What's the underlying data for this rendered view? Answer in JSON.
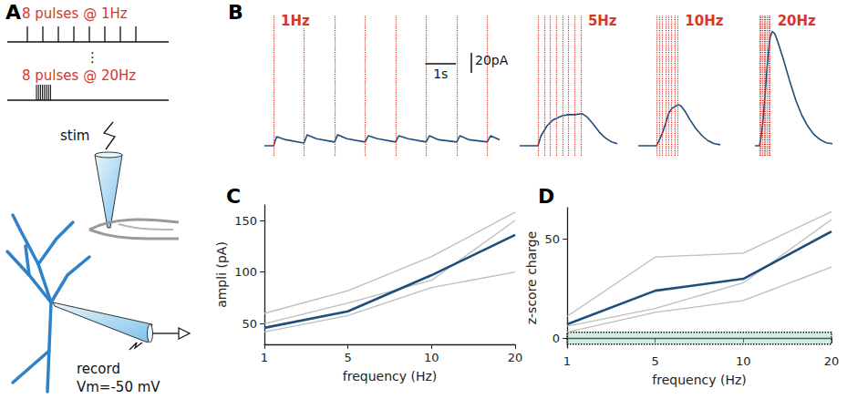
{
  "panel_labels": [
    "A",
    "B",
    "C",
    "D"
  ],
  "diagram": {
    "protocols": [
      {
        "label": "8 pulses @ 1Hz",
        "pulses": 8
      },
      {
        "label": "8 pulses @ 20Hz",
        "pulses": 8
      }
    ],
    "ellipsis": "⋮",
    "stim": "stim",
    "record": "record",
    "holding": "Vm=-50 mV"
  },
  "scale_bar": {
    "time": 1,
    "time_label": "1s",
    "current": 20,
    "current_label": "20pA"
  },
  "chart_data": [
    {
      "type": "line",
      "title": "1Hz",
      "color": "#1f4e7a",
      "tick_labels": false,
      "grid": false,
      "xlim": [
        -0.3,
        7.4
      ],
      "ylim": [
        -10,
        130
      ],
      "pulses": [
        0,
        1,
        2,
        3,
        4,
        5,
        6,
        7
      ],
      "x": [
        -0.3,
        0,
        0.1,
        0.4,
        0.95,
        1,
        1.1,
        1.4,
        1.95,
        2,
        2.1,
        2.4,
        2.95,
        3,
        3.1,
        3.4,
        3.95,
        4,
        4.1,
        4.4,
        4.95,
        5,
        5.1,
        5.4,
        5.95,
        6,
        6.1,
        6.4,
        6.95,
        7,
        7.1,
        7.4
      ],
      "values": [
        0,
        0,
        9,
        6,
        3,
        3,
        11,
        7,
        4,
        4,
        11,
        7,
        4,
        4,
        10,
        7,
        4,
        4,
        10,
        7,
        4,
        4,
        10,
        6,
        4,
        4,
        10,
        6,
        4,
        4,
        10,
        6
      ]
    },
    {
      "type": "line",
      "title": "5Hz",
      "color": "#1f4e7a",
      "tick_labels": false,
      "grid": false,
      "xlim": [
        -0.6,
        2.6
      ],
      "ylim": [
        -10,
        130
      ],
      "pulses": [
        0,
        0.2,
        0.4,
        0.6,
        0.8,
        1.0,
        1.2,
        1.4
      ],
      "x": [
        -0.6,
        0,
        0.1,
        0.2,
        0.3,
        0.5,
        0.8,
        1.0,
        1.2,
        1.45,
        1.6,
        1.8,
        2.0,
        2.2,
        2.4,
        2.6
      ],
      "values": [
        0,
        0,
        10,
        15,
        20,
        26,
        30,
        31,
        31,
        32,
        29,
        22,
        14,
        8,
        4,
        2
      ]
    },
    {
      "type": "line",
      "title": "10Hz",
      "color": "#1f4e7a",
      "tick_labels": false,
      "grid": false,
      "xlim": [
        -0.6,
        2.1
      ],
      "ylim": [
        -10,
        130
      ],
      "pulses": [
        0,
        0.1,
        0.2,
        0.3,
        0.4,
        0.5,
        0.6,
        0.7
      ],
      "x": [
        -0.6,
        0,
        0.1,
        0.2,
        0.3,
        0.4,
        0.5,
        0.6,
        0.72,
        0.8,
        0.95,
        1.1,
        1.3,
        1.5,
        1.7,
        1.9,
        2.1
      ],
      "values": [
        0,
        0,
        6,
        13,
        22,
        32,
        37,
        39,
        41,
        40,
        34,
        26,
        17,
        10,
        5,
        2,
        1
      ]
    },
    {
      "type": "line",
      "title": "20Hz",
      "color": "#1f4e7a",
      "tick_labels": false,
      "grid": false,
      "xlim": [
        -0.15,
        2.4
      ],
      "ylim": [
        -10,
        130
      ],
      "pulses": [
        0,
        0.05,
        0.1,
        0.15,
        0.2,
        0.25,
        0.3,
        0.35
      ],
      "x": [
        -0.15,
        0,
        0.05,
        0.1,
        0.15,
        0.2,
        0.25,
        0.3,
        0.35,
        0.42,
        0.5,
        0.6,
        0.8,
        1.0,
        1.2,
        1.4,
        1.6,
        1.8,
        2.0,
        2.2,
        2.4
      ],
      "values": [
        0,
        0,
        8,
        20,
        38,
        58,
        78,
        95,
        108,
        114,
        112,
        104,
        85,
        64,
        45,
        30,
        19,
        11,
        6,
        3,
        2
      ]
    },
    {
      "type": "line",
      "x_label": "frequency (Hz)",
      "y_label": "ampli (pA)",
      "grid": false,
      "categories": [
        "1",
        "5",
        "10",
        "20"
      ],
      "ylim": [
        30,
        165
      ],
      "yticks": [
        50,
        100,
        150
      ],
      "series": [
        {
          "color": "#bdbdbd",
          "values": [
            60,
            82,
            115,
            158
          ]
        },
        {
          "color": "#bdbdbd",
          "values": [
            50,
            70,
            92,
            150
          ]
        },
        {
          "color": "#bdbdbd",
          "values": [
            42,
            58,
            85,
            100
          ]
        },
        {
          "color": "#1f4e7a",
          "values": [
            46,
            62,
            97,
            136
          ]
        }
      ]
    },
    {
      "type": "line",
      "x_label": "frequency (Hz)",
      "y_label": "z-score charge",
      "grid": false,
      "categories": [
        "1",
        "5",
        "10",
        "20"
      ],
      "ylim": [
        -5,
        66
      ],
      "yticks": [
        0,
        50
      ],
      "band": [
        -3,
        3
      ],
      "series": [
        {
          "color": "#bdbdbd",
          "values": [
            11,
            41,
            43,
            64
          ]
        },
        {
          "color": "#bdbdbd",
          "values": [
            6,
            15,
            28,
            60
          ]
        },
        {
          "color": "#bdbdbd",
          "values": [
            3,
            13,
            19,
            36
          ]
        },
        {
          "color": "#1f4e7a",
          "values": [
            7,
            24,
            30,
            54
          ]
        }
      ]
    }
  ]
}
